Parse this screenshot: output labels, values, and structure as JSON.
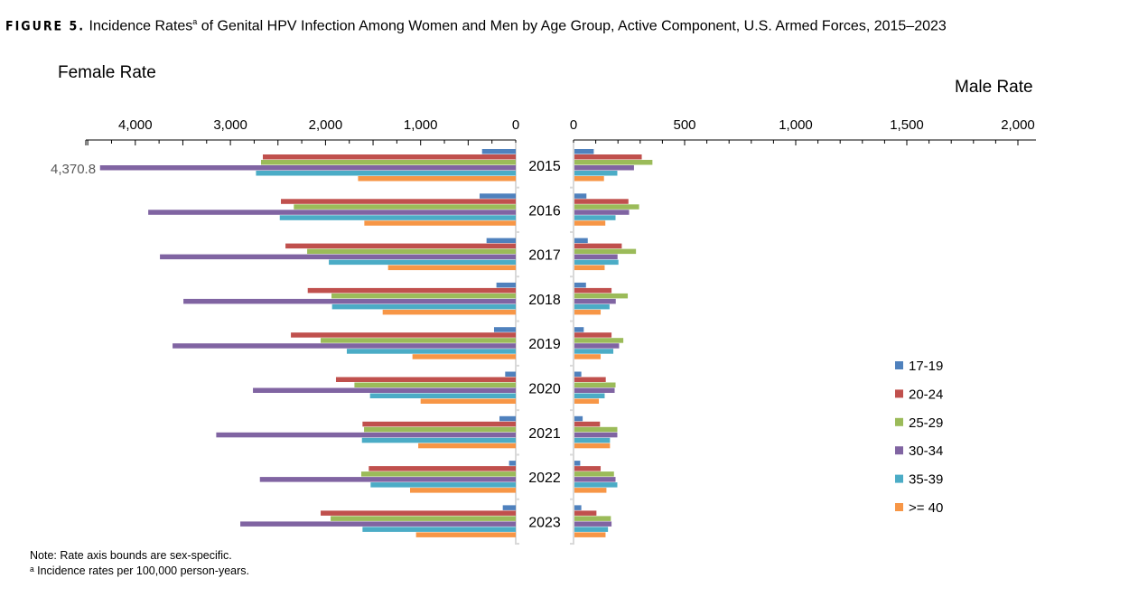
{
  "title": {
    "figure_label": "FIGURE 5.",
    "text_before_sup": "Incidence Rates",
    "sup": "a",
    "text_after_sup": " of Genital HPV Infection Among Women and Men by Age Group, Active Component, U.S. Armed Forces, 2015–2023"
  },
  "notes": [
    "Note: Rate axis bounds are sex-specific.",
    "ᵃ Incidence rates per 100,000 person-years."
  ],
  "chart_data": {
    "type": "bar",
    "orientation": "horizontal-back-to-back",
    "categories": [
      "2015",
      "2016",
      "2017",
      "2018",
      "2019",
      "2020",
      "2021",
      "2022",
      "2023"
    ],
    "legend": {
      "placement": "right",
      "entries": [
        "17-19",
        "20-24",
        "25-29",
        "30-34",
        "35-39",
        ">= 40"
      ]
    },
    "colors": [
      "#4f81bd",
      "#c0504d",
      "#9bbb59",
      "#8064a2",
      "#4bacc6",
      "#f79646"
    ],
    "female": {
      "axis_label": "Female Rate",
      "xlim": [
        0,
        4500
      ],
      "ticks": [
        "4,000",
        "3,000",
        "2,000",
        "1,000",
        "0"
      ],
      "tick_values": [
        4000,
        3000,
        2000,
        1000,
        0
      ],
      "annotation": {
        "text": "4,370.8",
        "series": "30-34",
        "category": "2015"
      },
      "series": [
        {
          "name": "17-19",
          "values": [
            354,
            380,
            307,
            203,
            228,
            111,
            171,
            70,
            136
          ]
        },
        {
          "name": "20-24",
          "values": [
            2659,
            2469,
            2421,
            2187,
            2364,
            1890,
            1611,
            1545,
            2051
          ]
        },
        {
          "name": "25-29",
          "values": [
            2678,
            2333,
            2193,
            1937,
            2051,
            1696,
            1595,
            1624,
            1946
          ]
        },
        {
          "name": "30-34",
          "values": [
            4370.8,
            3864,
            3741,
            3494,
            3608,
            2763,
            3149,
            2690,
            2896
          ]
        },
        {
          "name": "35-39",
          "values": [
            2731,
            2481,
            1965,
            1931,
            1776,
            1532,
            1617,
            1526,
            1611
          ]
        },
        {
          "name": ">= 40",
          "values": [
            1658,
            1592,
            1342,
            1399,
            1086,
            1000,
            1025,
            1111,
            1048
          ]
        }
      ]
    },
    "male": {
      "axis_label": "Male Rate",
      "xlim": [
        0,
        2000
      ],
      "ticks": [
        "0",
        "500",
        "1,000",
        "1,500",
        "2,000"
      ],
      "tick_values": [
        0,
        500,
        1000,
        1500,
        2000
      ],
      "series": [
        {
          "name": "17-19",
          "values": [
            87,
            54,
            60,
            52,
            42,
            31,
            37,
            26,
            31
          ]
        },
        {
          "name": "20-24",
          "values": [
            303,
            243,
            213,
            167,
            167,
            141,
            115,
            118,
            99
          ]
        },
        {
          "name": "25-29",
          "values": [
            351,
            291,
            277,
            240,
            220,
            185,
            193,
            178,
            164
          ]
        },
        {
          "name": "30-34",
          "values": [
            268,
            246,
            194,
            186,
            201,
            181,
            193,
            185,
            167
          ]
        },
        {
          "name": "35-39",
          "values": [
            193,
            185,
            198,
            158,
            175,
            136,
            160,
            193,
            151
          ]
        },
        {
          "name": ">= 40",
          "values": [
            133,
            139,
            136,
            118,
            118,
            110,
            160,
            144,
            140
          ]
        }
      ]
    }
  }
}
